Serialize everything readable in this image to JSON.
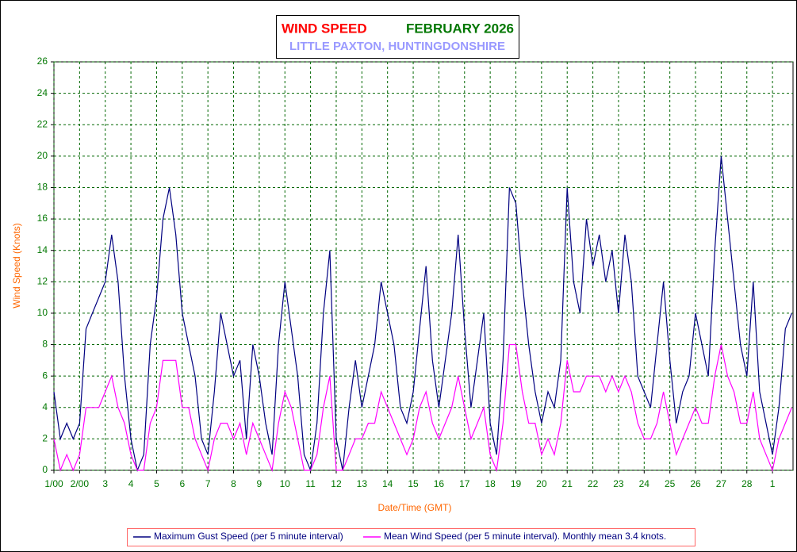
{
  "chart_data": {
    "type": "line",
    "title": "WIND SPEED",
    "period": "FEBRUARY 2026",
    "subtitle": "LITTLE PAXTON, HUNTINGDONSHIRE",
    "x_label": "Date/Time (GMT)",
    "y_label": "Wind Speed (Knots)",
    "xlim": [
      1,
      29.8
    ],
    "ylim": [
      0,
      26
    ],
    "yticks": [
      0,
      2,
      4,
      6,
      8,
      10,
      12,
      14,
      16,
      18,
      20,
      22,
      24,
      26
    ],
    "xticks": [
      {
        "value": 1,
        "label": "1/00"
      },
      {
        "value": 2,
        "label": "2/00"
      },
      3,
      4,
      5,
      6,
      7,
      8,
      9,
      10,
      11,
      12,
      13,
      14,
      15,
      16,
      17,
      18,
      19,
      20,
      21,
      22,
      23,
      24,
      25,
      26,
      27,
      28,
      {
        "value": 29,
        "label": "1"
      }
    ],
    "grid": true,
    "x": [
      1,
      1.25,
      1.5,
      1.75,
      2,
      2.25,
      2.5,
      2.75,
      3,
      3.25,
      3.5,
      3.75,
      4,
      4.25,
      4.5,
      4.75,
      5,
      5.25,
      5.5,
      5.75,
      6,
      6.25,
      6.5,
      6.75,
      7,
      7.25,
      7.5,
      7.75,
      8,
      8.25,
      8.5,
      8.75,
      9,
      9.25,
      9.5,
      9.75,
      10,
      10.25,
      10.5,
      10.75,
      11,
      11.25,
      11.5,
      11.75,
      12,
      12.25,
      12.5,
      12.75,
      13,
      13.25,
      13.5,
      13.75,
      14,
      14.25,
      14.5,
      14.75,
      15,
      15.25,
      15.5,
      15.75,
      16,
      16.25,
      16.5,
      16.75,
      17,
      17.25,
      17.5,
      17.75,
      18,
      18.25,
      18.5,
      18.75,
      19,
      19.25,
      19.5,
      19.75,
      20,
      20.25,
      20.5,
      20.75,
      21,
      21.25,
      21.5,
      21.75,
      22,
      22.25,
      22.5,
      22.75,
      23,
      23.25,
      23.5,
      23.75,
      24,
      24.25,
      24.5,
      24.75,
      25,
      25.25,
      25.5,
      25.75,
      26,
      26.25,
      26.5,
      26.75,
      27,
      27.25,
      27.5,
      27.75,
      28,
      28.25,
      28.5,
      28.75,
      29,
      29.25,
      29.5,
      29.75
    ],
    "series": [
      {
        "name": "Maximum Gust Speed (per 5 minute interval)",
        "color": "#000080",
        "values": [
          5,
          2,
          3,
          2,
          3,
          9,
          10,
          11,
          12,
          15,
          12,
          6,
          2,
          0,
          1,
          8,
          11,
          16,
          18,
          15,
          10,
          8,
          6,
          2,
          1,
          5,
          10,
          8,
          6,
          7,
          2,
          8,
          6,
          3,
          1,
          8,
          12,
          9,
          6,
          1,
          0,
          3,
          10,
          14,
          2,
          0,
          4,
          7,
          4,
          6,
          8,
          12,
          10,
          8,
          4,
          3,
          5,
          9,
          13,
          7,
          4,
          7,
          10,
          15,
          9,
          4,
          7,
          10,
          3,
          1,
          7,
          18,
          17,
          12,
          8,
          5,
          3,
          5,
          4,
          7,
          18,
          12,
          10,
          16,
          13,
          15,
          12,
          14,
          10,
          15,
          12,
          6,
          5,
          4,
          8,
          12,
          7,
          3,
          5,
          6,
          10,
          8,
          6,
          14,
          20,
          16,
          12,
          8,
          6,
          12,
          5,
          3,
          1,
          4,
          9,
          10
        ]
      },
      {
        "name": "Mean Wind Speed (per 5 minute interval). Monthly mean 3.4 knots.",
        "color": "#ff00ff",
        "values": [
          2,
          0,
          1,
          0,
          1,
          4,
          4,
          4,
          5,
          6,
          4,
          3,
          1,
          0,
          0,
          3,
          4,
          7,
          7,
          7,
          4,
          4,
          2,
          1,
          0,
          2,
          3,
          3,
          2,
          3,
          1,
          3,
          2,
          1,
          0,
          3,
          5,
          4,
          2,
          0,
          0,
          1,
          4,
          6,
          0,
          0,
          1,
          2,
          2,
          3,
          3,
          5,
          4,
          3,
          2,
          1,
          2,
          4,
          5,
          3,
          2,
          3,
          4,
          6,
          4,
          2,
          3,
          4,
          1,
          0,
          3,
          8,
          8,
          5,
          3,
          3,
          1,
          2,
          1,
          3,
          7,
          5,
          5,
          6,
          6,
          6,
          5,
          6,
          5,
          6,
          5,
          3,
          2,
          2,
          3,
          5,
          3,
          1,
          2,
          3,
          4,
          3,
          3,
          6,
          8,
          6,
          5,
          3,
          3,
          5,
          2,
          1,
          0,
          2,
          3,
          4
        ]
      }
    ]
  }
}
